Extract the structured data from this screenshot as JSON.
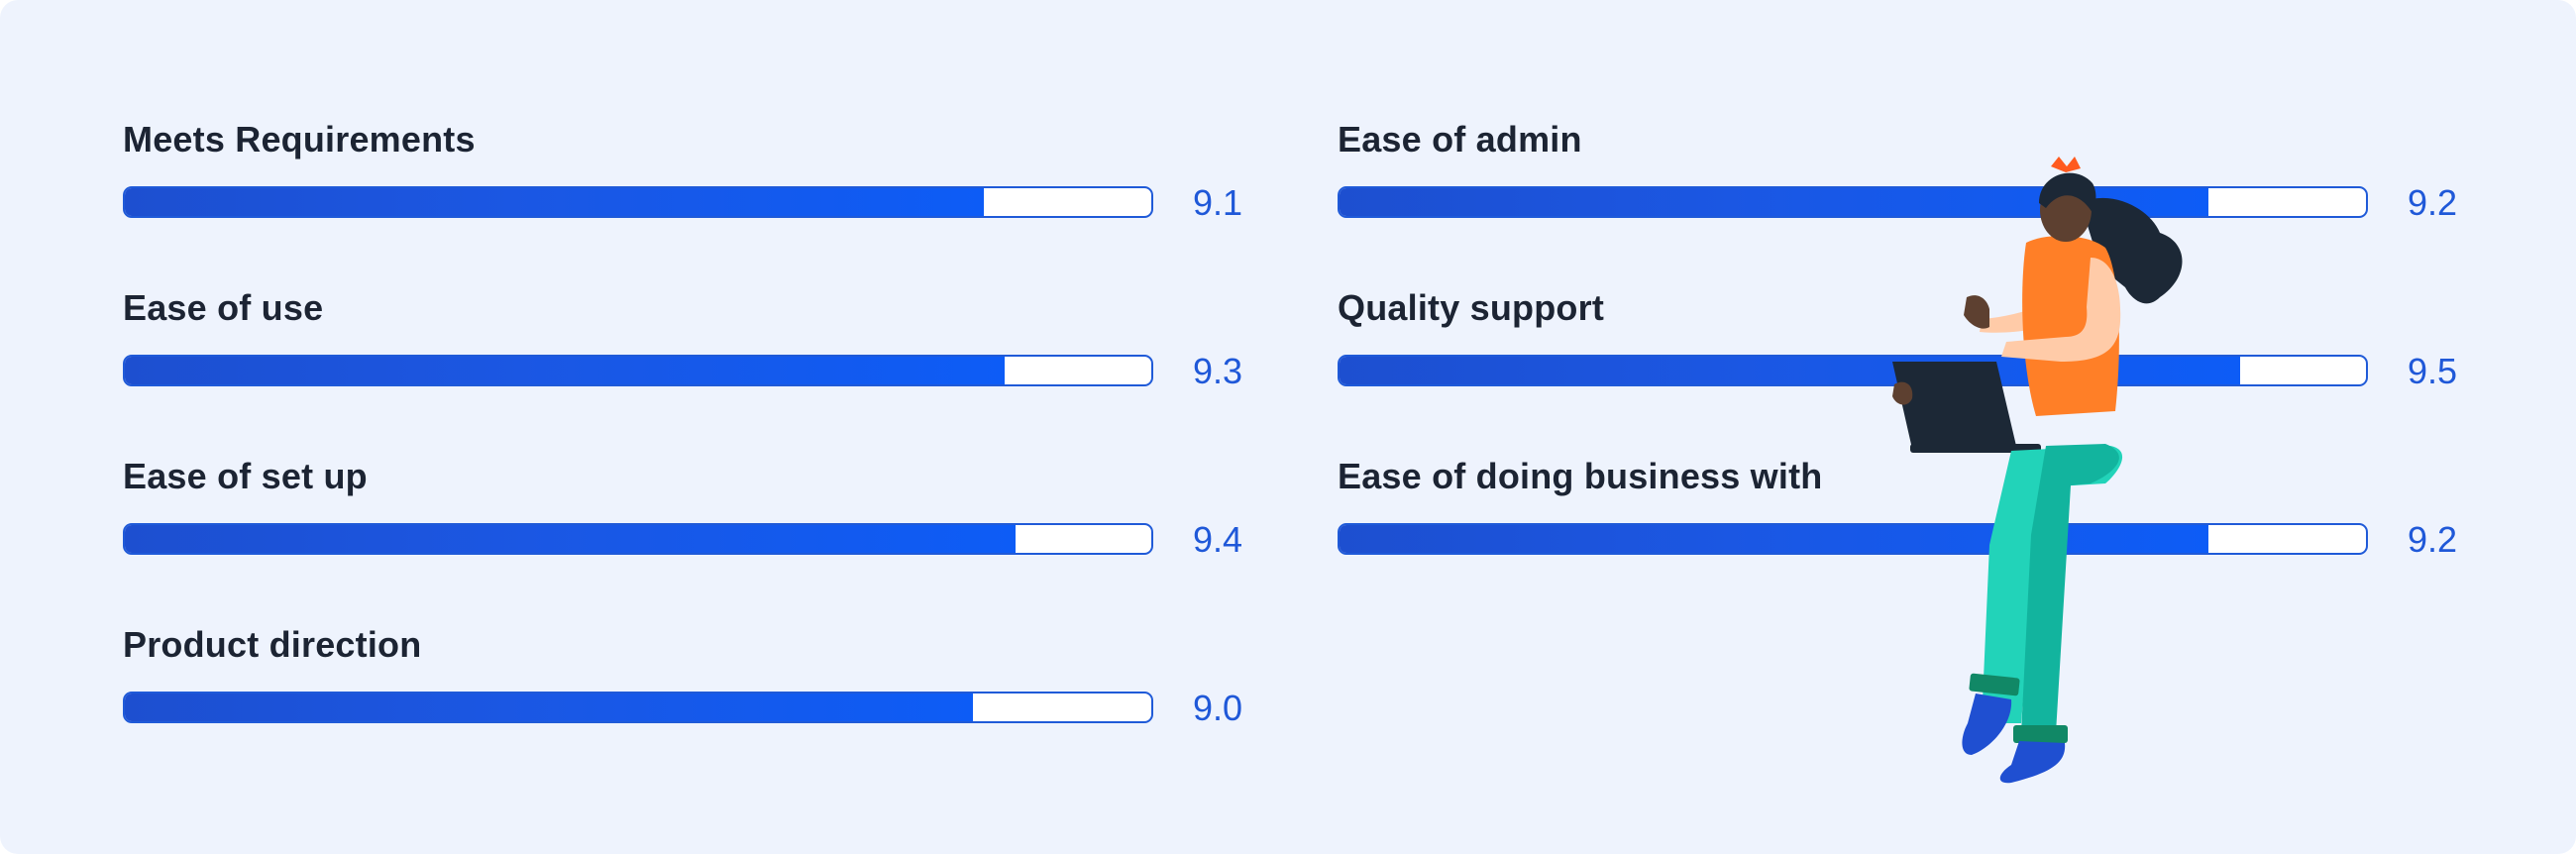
{
  "chart_data": {
    "type": "bar",
    "orientation": "horizontal",
    "xlim": [
      0,
      10
    ],
    "grid": false,
    "legend": "none",
    "left_column": [
      {
        "label": "Meets Requirements",
        "value": 9.1,
        "value_text": "9.1"
      },
      {
        "label": "Ease of use",
        "value": 9.3,
        "value_text": "9.3"
      },
      {
        "label": "Ease of set up",
        "value": 9.4,
        "value_text": "9.4"
      },
      {
        "label": "Product direction",
        "value": 9.0,
        "value_text": "9.0"
      }
    ],
    "right_column": [
      {
        "label": "Ease of admin",
        "value": 9.2,
        "value_text": "9.2"
      },
      {
        "label": "Quality support",
        "value": 9.5,
        "value_text": "9.5"
      },
      {
        "label": "Ease of doing business with",
        "value": 9.2,
        "value_text": "9.2"
      }
    ]
  },
  "colors": {
    "background": "#eef3fd",
    "bar_fill": "#1b57e3",
    "bar_border": "#1f5ad8",
    "label_text": "#1c2433",
    "value_text": "#1f58d8"
  },
  "illustration": {
    "icon": "woman-with-laptop-illustration"
  }
}
